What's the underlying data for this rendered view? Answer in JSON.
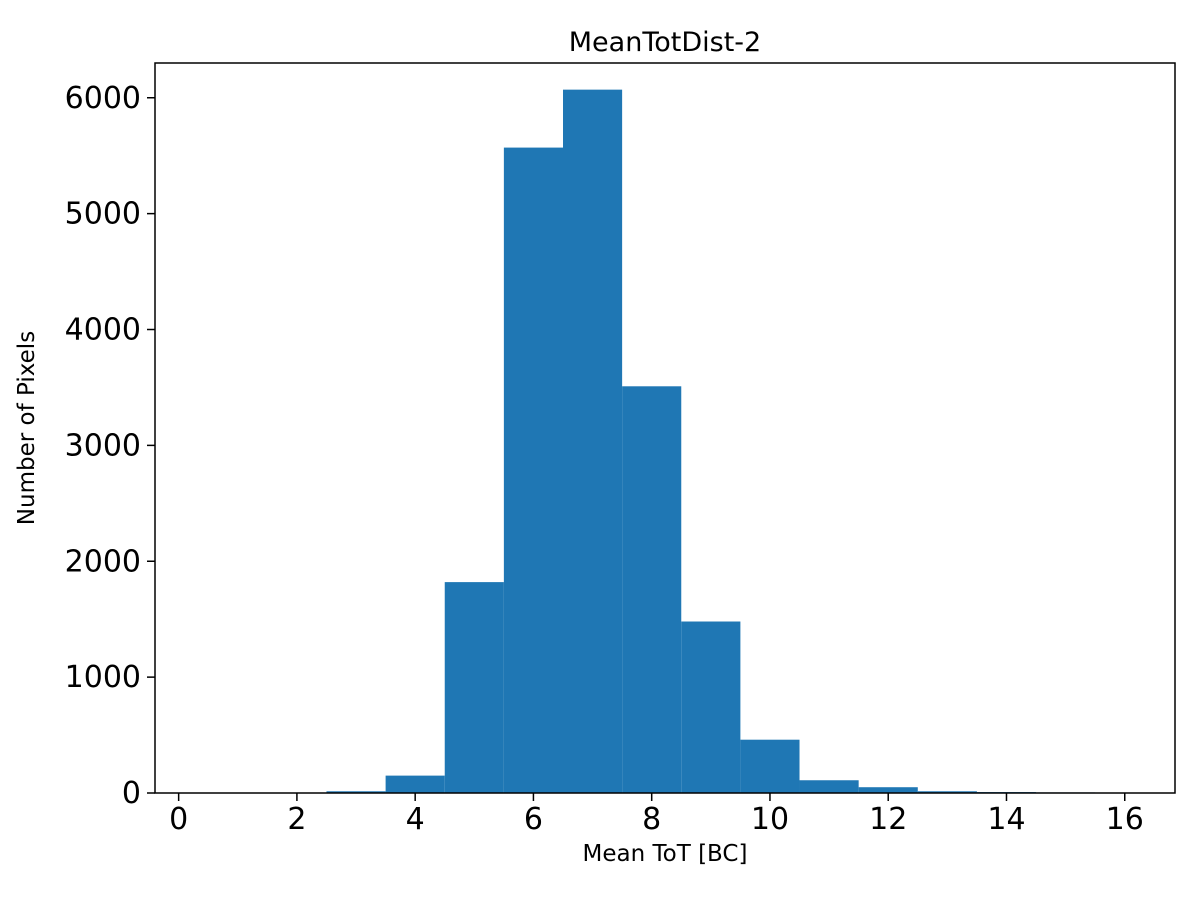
{
  "chart_data": {
    "type": "bar",
    "subtype": "histogram",
    "title": "MeanTotDist-2",
    "xlabel": "Mean ToT [BC]",
    "ylabel": "Number of Pixels",
    "bar_color": "#1f77b4",
    "background_color": "#ffffff",
    "axis_color": "#000000",
    "xlim": [
      -0.4,
      16.85
    ],
    "ylim": [
      0,
      6300
    ],
    "x_ticks": [
      0,
      2,
      4,
      6,
      8,
      10,
      12,
      14,
      16
    ],
    "y_ticks": [
      0,
      1000,
      2000,
      3000,
      4000,
      5000,
      6000
    ],
    "grid": false,
    "legend": false,
    "bin_edges": [
      2.5,
      3.5,
      4.5,
      5.5,
      6.5,
      7.5,
      8.5,
      9.5,
      10.5,
      11.5,
      12.5,
      13.5,
      14.5,
      15.5
    ],
    "counts": [
      15,
      150,
      1820,
      5570,
      6070,
      3510,
      1480,
      460,
      110,
      50,
      15,
      8,
      5
    ]
  }
}
